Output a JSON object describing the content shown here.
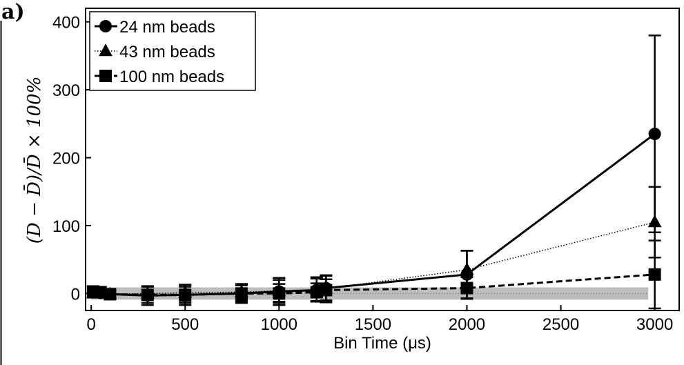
{
  "panel_label": "a)",
  "chart_data": {
    "type": "line",
    "xlabel": "Bin Time (μs)",
    "ylabel": "(D − D̄)/D̄ × 100%",
    "xlim": [
      -30,
      3130
    ],
    "ylim": [
      -25,
      420
    ],
    "x_ticks": [
      0,
      500,
      1000,
      1500,
      2000,
      2500,
      3000
    ],
    "y_ticks": [
      0,
      100,
      200,
      300,
      400
    ],
    "grid": false,
    "legend_position": "top-left",
    "shaded_band": [
      -9,
      9
    ],
    "series": [
      {
        "name": "24 nm beads",
        "marker": "circle",
        "line": "solid",
        "x": [
          10,
          50,
          100,
          300,
          500,
          800,
          1000,
          1200,
          1250,
          2000,
          3000
        ],
        "y": [
          2,
          1,
          -1,
          -3,
          -2,
          0,
          3,
          5,
          8,
          28,
          235
        ],
        "err": [
          8,
          7,
          6,
          14,
          15,
          12,
          20,
          17,
          18,
          35,
          145
        ]
      },
      {
        "name": "43 nm beads",
        "marker": "triangle",
        "line": "dotted",
        "x": [
          10,
          50,
          100,
          300,
          500,
          800,
          1000,
          1200,
          1250,
          2000,
          3000
        ],
        "y": [
          0,
          1,
          -1,
          0,
          1,
          2,
          4,
          6,
          7,
          35,
          105
        ],
        "err": [
          6,
          6,
          5,
          10,
          12,
          12,
          16,
          18,
          20,
          28,
          52
        ]
      },
      {
        "name": "100 nm beads",
        "marker": "square",
        "line": "dashed",
        "x": [
          10,
          50,
          100,
          300,
          500,
          800,
          1000,
          1200,
          1250,
          2000,
          3000
        ],
        "y": [
          3,
          2,
          -1,
          -2,
          -2,
          0,
          0,
          2,
          5,
          8,
          28
        ],
        "err": [
          6,
          5,
          5,
          12,
          12,
          14,
          14,
          13,
          16,
          16,
          50
        ]
      }
    ]
  }
}
